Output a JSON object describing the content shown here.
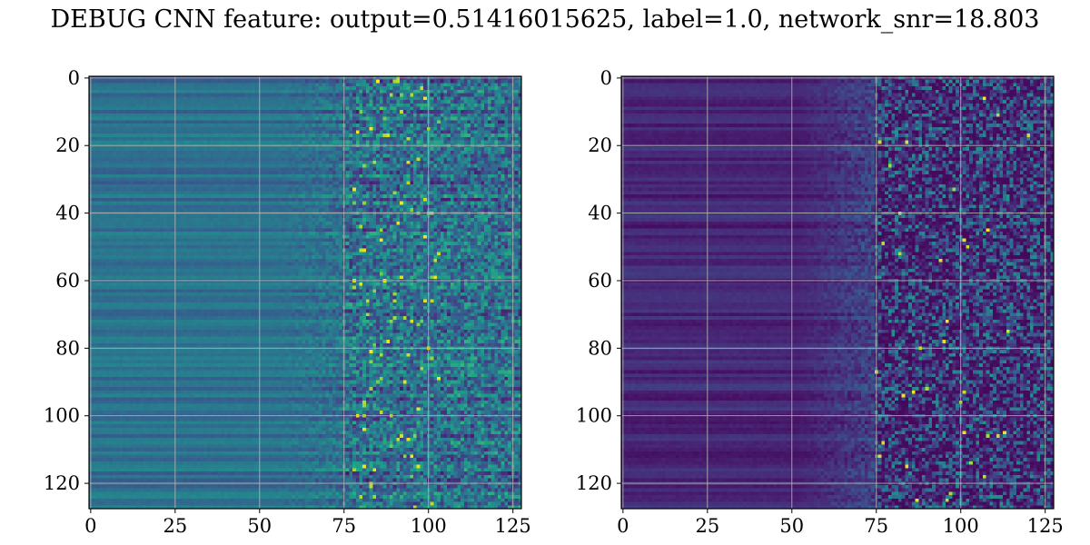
{
  "title": "DEBUG CNN feature: output=0.51416015625, label=1.0, network_snr=18.803",
  "chart_data": [
    {
      "type": "heatmap",
      "colormap": "viridis",
      "shape": [
        128,
        128
      ],
      "xlim": [
        0,
        127
      ],
      "ylim": [
        127,
        0
      ],
      "xticks": [
        0,
        25,
        50,
        75,
        100,
        125
      ],
      "yticks": [
        0,
        20,
        40,
        60,
        80,
        100,
        120
      ],
      "grid": true
    },
    {
      "type": "heatmap",
      "colormap": "viridis",
      "shape": [
        128,
        128
      ],
      "xlim": [
        0,
        127
      ],
      "ylim": [
        127,
        0
      ],
      "xticks": [
        0,
        25,
        50,
        75,
        100,
        125
      ],
      "yticks": [
        0,
        20,
        40,
        60,
        80,
        100,
        120
      ],
      "grid": true
    }
  ]
}
